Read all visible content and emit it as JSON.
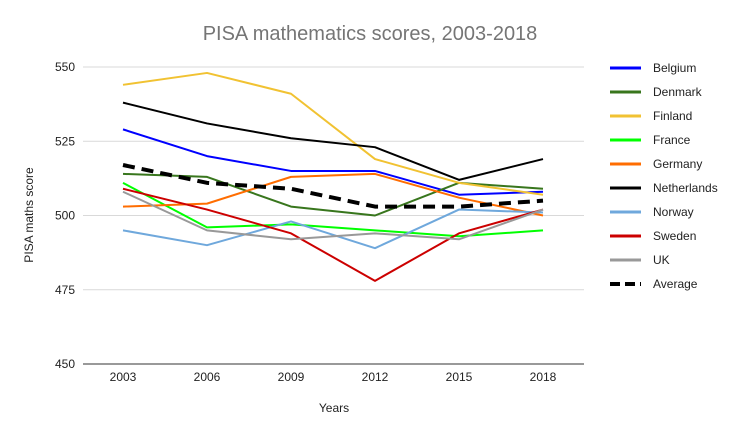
{
  "chart_data": {
    "type": "line",
    "title": "PISA mathematics scores, 2003-2018",
    "xlabel": "Years",
    "ylabel": "PISA maths score",
    "x": [
      "2003",
      "2006",
      "2009",
      "2012",
      "2015",
      "2018"
    ],
    "ylim": [
      450,
      550
    ],
    "yticks": [
      450,
      475,
      500,
      525,
      550
    ],
    "grid": true,
    "legend_position": "right",
    "series": [
      {
        "name": "Belgium",
        "color": "#0000ff",
        "dash": false,
        "values": [
          529,
          520,
          515,
          515,
          507,
          508
        ]
      },
      {
        "name": "Denmark",
        "color": "#38761d",
        "dash": false,
        "values": [
          514,
          513,
          503,
          500,
          511,
          509
        ]
      },
      {
        "name": "Finland",
        "color": "#f1c232",
        "dash": false,
        "values": [
          544,
          548,
          541,
          519,
          511,
          507
        ]
      },
      {
        "name": "France",
        "color": "#00ff00",
        "dash": false,
        "values": [
          511,
          496,
          497,
          495,
          493,
          495
        ]
      },
      {
        "name": "Germany",
        "color": "#ff6d01",
        "dash": false,
        "values": [
          503,
          504,
          513,
          514,
          506,
          500
        ]
      },
      {
        "name": "Netherlands",
        "color": "#000000",
        "dash": false,
        "values": [
          538,
          531,
          526,
          523,
          512,
          519
        ]
      },
      {
        "name": "Norway",
        "color": "#6fa8dc",
        "dash": false,
        "values": [
          495,
          490,
          498,
          489,
          502,
          501
        ]
      },
      {
        "name": "Sweden",
        "color": "#cc0000",
        "dash": false,
        "values": [
          509,
          502,
          494,
          478,
          494,
          502
        ]
      },
      {
        "name": "UK",
        "color": "#999999",
        "dash": false,
        "values": [
          508,
          495,
          492,
          494,
          492,
          502
        ]
      },
      {
        "name": "Average",
        "color": "#000000",
        "dash": true,
        "values": [
          517,
          511,
          509,
          503,
          503,
          505
        ]
      }
    ]
  }
}
